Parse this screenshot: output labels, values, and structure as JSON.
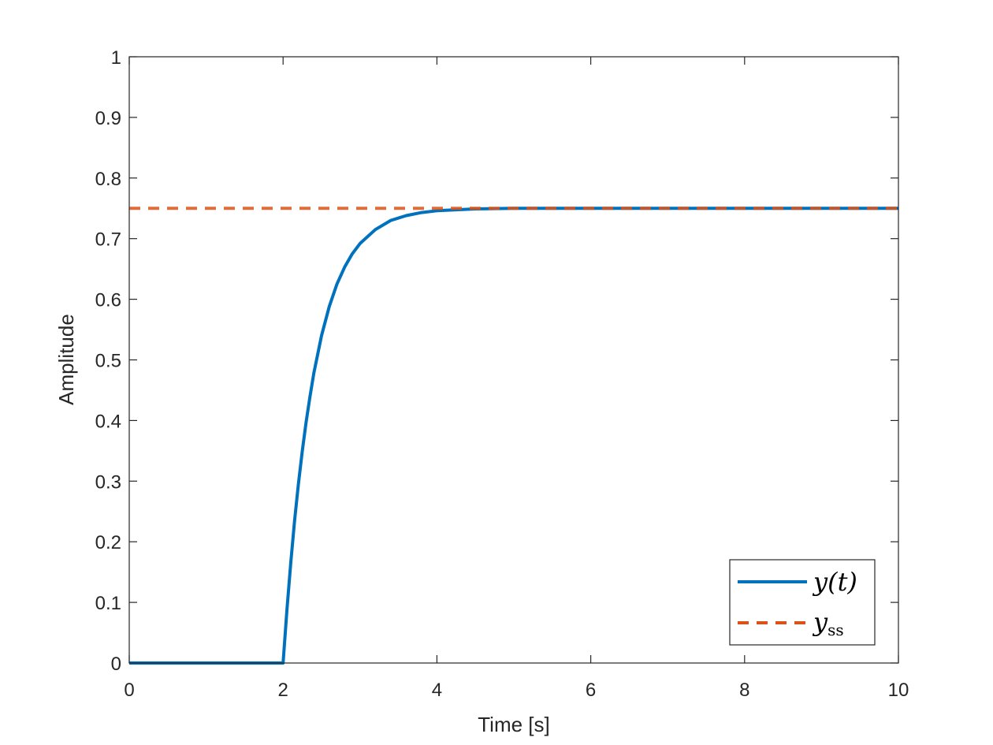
{
  "chart_data": {
    "type": "line",
    "title": "",
    "xlabel": "Time [s]",
    "ylabel": "Amplitude",
    "xlim": [
      0,
      10
    ],
    "ylim": [
      0,
      1
    ],
    "xticks": [
      0,
      2,
      4,
      6,
      8,
      10
    ],
    "yticks": [
      0,
      0.1,
      0.2,
      0.3,
      0.4,
      0.5,
      0.6,
      0.7,
      0.8,
      0.9,
      1
    ],
    "xtick_labels": [
      "0",
      "2",
      "4",
      "6",
      "8",
      "10"
    ],
    "ytick_labels": [
      "0",
      "0.1",
      "0.2",
      "0.3",
      "0.4",
      "0.5",
      "0.6",
      "0.7",
      "0.8",
      "0.9",
      "1"
    ],
    "grid": false,
    "legend_position": "bottom-right",
    "series": [
      {
        "name": "y(t)",
        "style": "solid",
        "color": "#0072BD",
        "x": [
          0,
          2,
          2.05,
          2.1,
          2.15,
          2.2,
          2.25,
          2.3,
          2.35,
          2.4,
          2.5,
          2.6,
          2.7,
          2.8,
          2.9,
          3.0,
          3.2,
          3.4,
          3.6,
          3.8,
          4.0,
          4.5,
          5,
          6,
          7,
          8,
          9,
          10
        ],
        "y": [
          0,
          0,
          0.088,
          0.166,
          0.235,
          0.296,
          0.35,
          0.398,
          0.44,
          0.478,
          0.54,
          0.588,
          0.625,
          0.653,
          0.675,
          0.692,
          0.715,
          0.73,
          0.738,
          0.743,
          0.746,
          0.749,
          0.75,
          0.75,
          0.75,
          0.75,
          0.75,
          0.75
        ]
      },
      {
        "name": "y_ss",
        "style": "dashed",
        "color": "#D95319",
        "x": [
          0,
          10
        ],
        "y": [
          0.75,
          0.75
        ]
      }
    ]
  },
  "legend": {
    "entries": [
      {
        "main": "y(t)",
        "sub": ""
      },
      {
        "main": "y",
        "sub": "ss"
      }
    ]
  }
}
